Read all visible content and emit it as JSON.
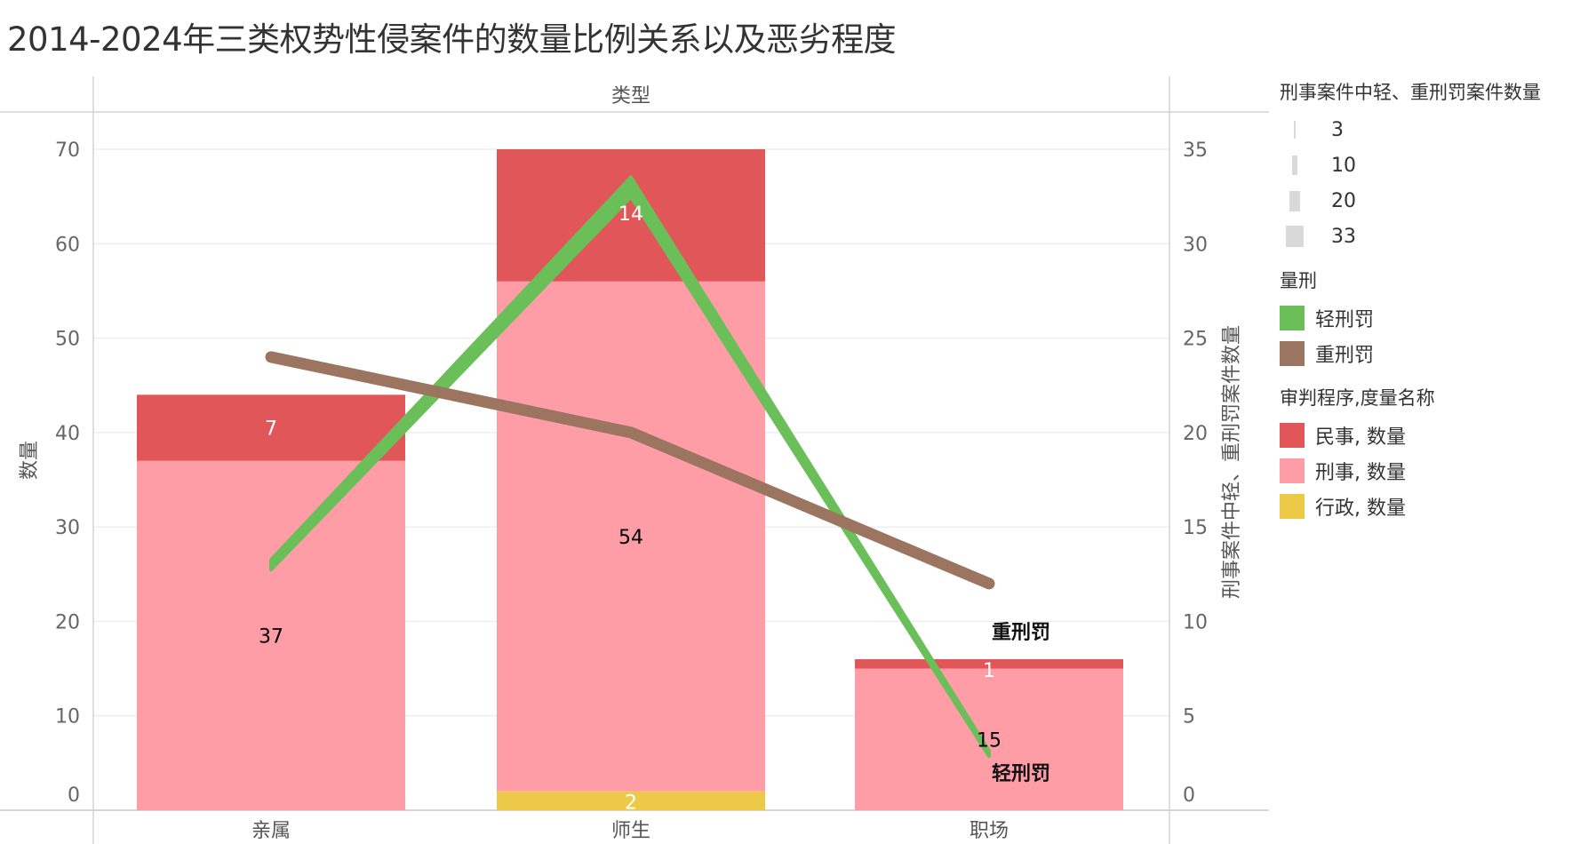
{
  "title": "2014-2024年三类权势性侵案件的数量比例关系以及恶劣程度",
  "chart_data": {
    "type": "bar",
    "column_header": "类型",
    "categories": [
      "亲属",
      "师生",
      "职场"
    ],
    "ylabel": "数量",
    "ylim": [
      0,
      70
    ],
    "yticks": [
      0,
      10,
      20,
      30,
      40,
      50,
      60,
      70
    ],
    "y2label": "刑事案件中轻、重刑罚案件数量",
    "y2lim": [
      0,
      35
    ],
    "y2ticks": [
      0,
      5,
      10,
      15,
      20,
      25,
      30,
      35
    ],
    "stack_legend_title": "审判程序,度量名称",
    "stacked_series": [
      {
        "name": "行政, 数量",
        "color": "#EDC948",
        "values": [
          0,
          2,
          0
        ],
        "labels": [
          "",
          "2",
          ""
        ],
        "label_color": "#ffffff"
      },
      {
        "name": "刑事, 数量",
        "color": "#FF9DA7",
        "values": [
          37,
          54,
          15
        ],
        "labels": [
          "37",
          "54",
          "15"
        ],
        "label_color": "#000000"
      },
      {
        "name": "民事, 数量",
        "color": "#E15759",
        "values": [
          7,
          14,
          1
        ],
        "labels": [
          "7",
          "14",
          "1"
        ],
        "label_color": "#ffffff"
      }
    ],
    "line_legend_title": "量刑",
    "line_series": [
      {
        "name": "轻刑罚",
        "color": "#6ABF59",
        "values": [
          13,
          33,
          3
        ],
        "end_label": "轻刑罚"
      },
      {
        "name": "重刑罚",
        "color": "#9C7561",
        "values": [
          24,
          20,
          12
        ],
        "end_label": "重刑罚"
      }
    ],
    "size_legend_title": "刑事案件中轻、重刑罚案件数量",
    "size_legend": [
      3,
      10,
      20,
      33
    ],
    "grid": true
  }
}
